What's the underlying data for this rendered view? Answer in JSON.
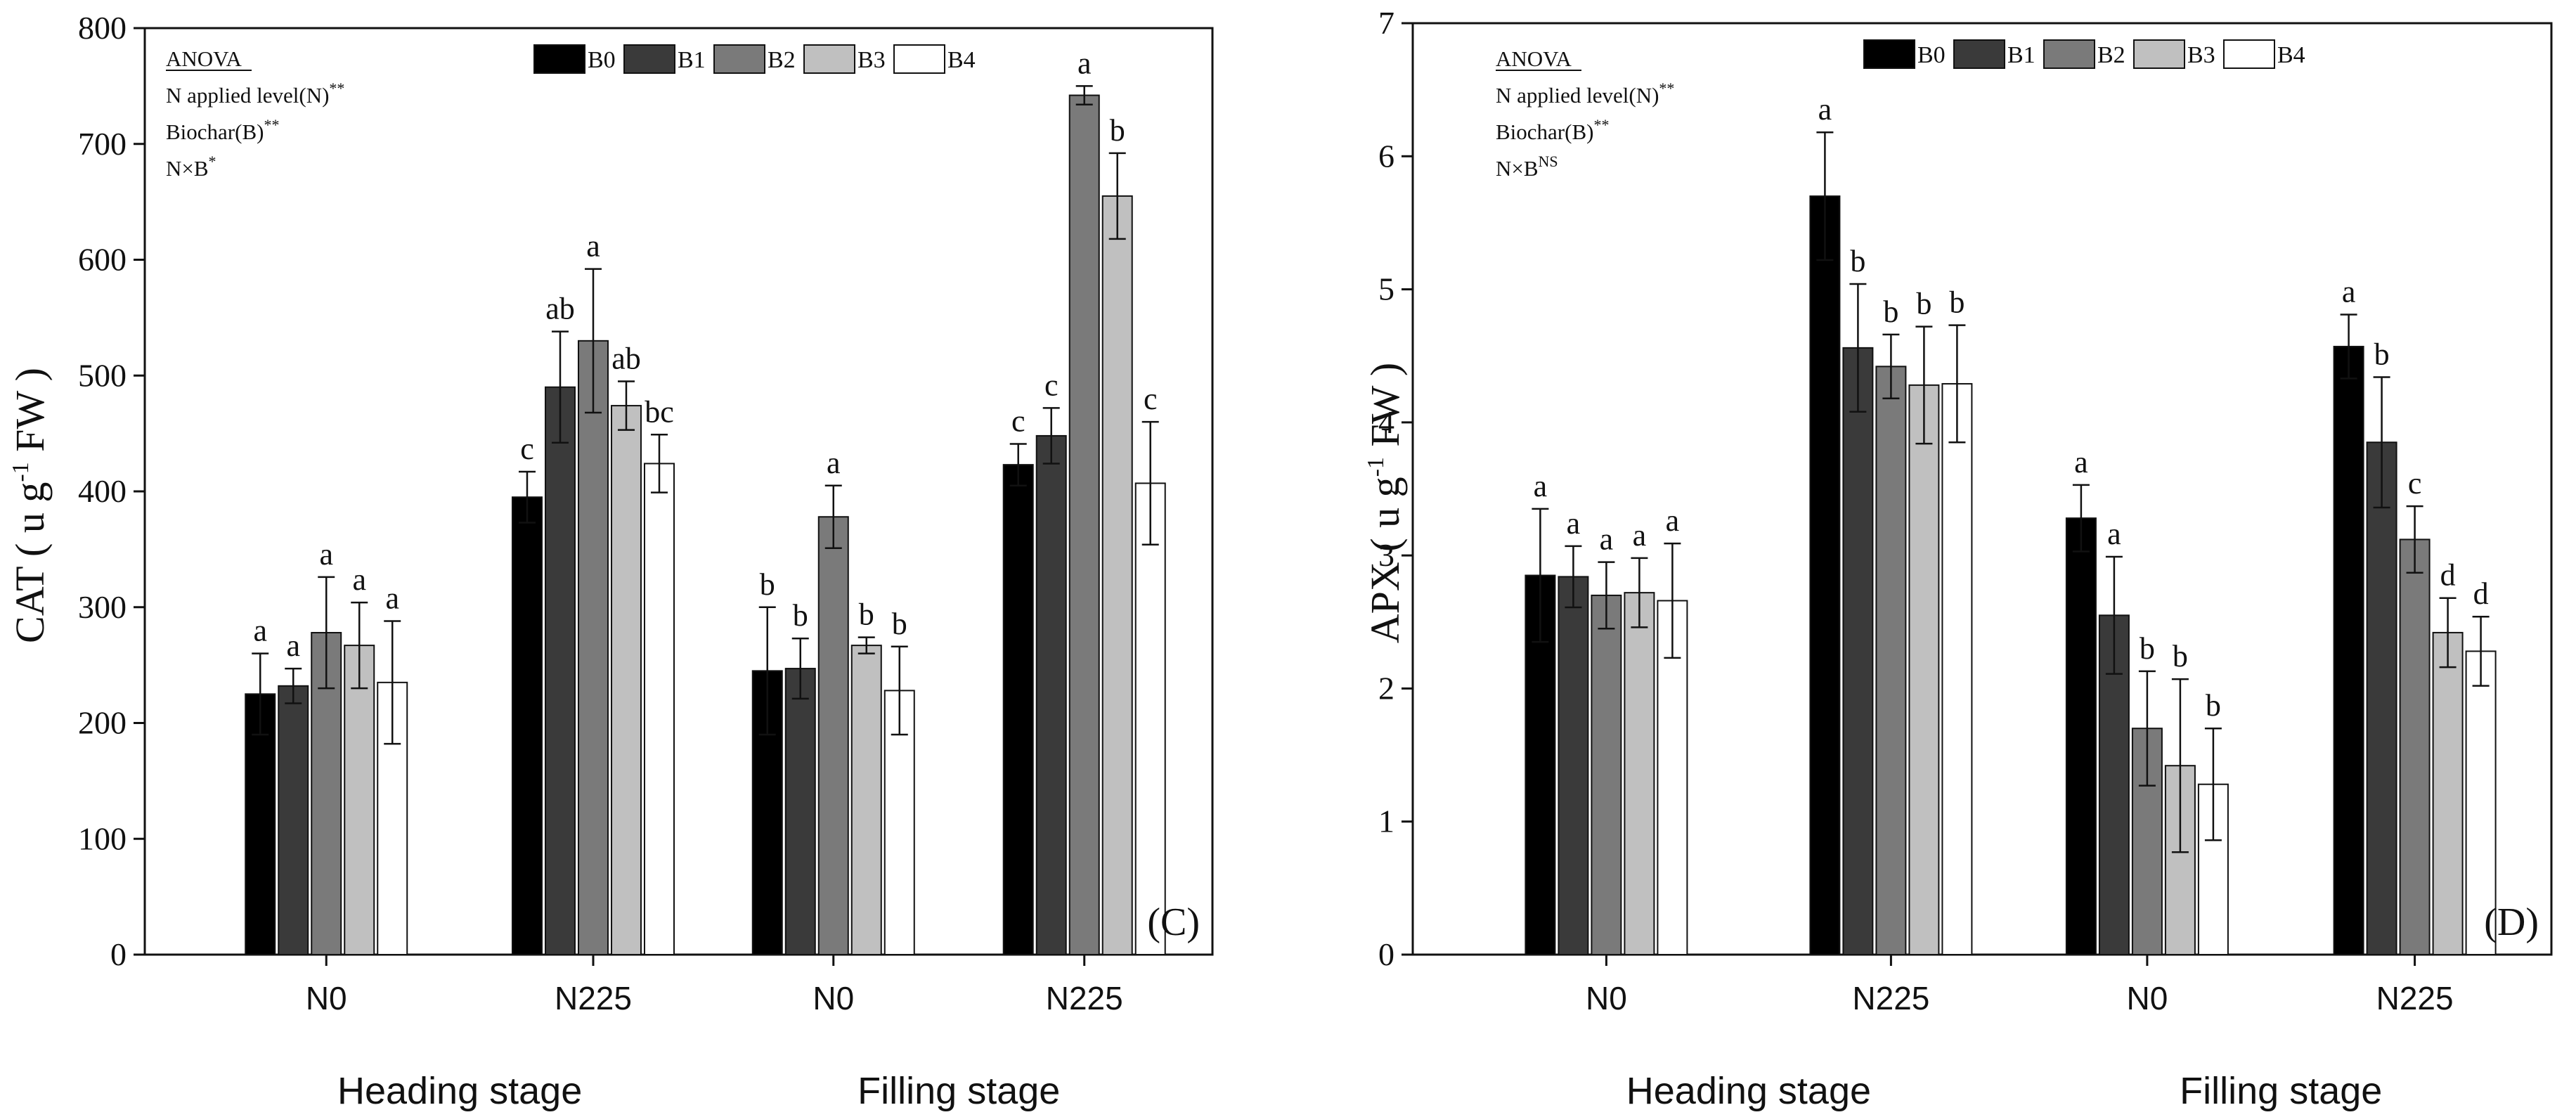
{
  "colors": {
    "B0": "#000000",
    "B1": "#3a3a3a",
    "B2": "#7a7a7a",
    "B3": "#c0c0c0",
    "B4": "#ffffff"
  },
  "chart_data": [
    {
      "type": "bar",
      "panel_label": "(C)",
      "ylabel_main": "CAT ( u g",
      "ylabel_sup": "-1",
      "ylabel_tail": " FW )",
      "ylim": [
        0,
        800
      ],
      "yticks": [
        "0",
        "100",
        "200",
        "300",
        "400",
        "500",
        "600",
        "700",
        "800"
      ],
      "categories": [
        "N0",
        "N225",
        "N0",
        "N225"
      ],
      "groups": [
        "Heading stage",
        "Filling stage"
      ],
      "anova": {
        "title": "ANOVA",
        "lines": [
          {
            "text": "N applied level(N)",
            "sup": "**"
          },
          {
            "text": "Biochar(B)",
            "sup": "**"
          },
          {
            "text": "N×B",
            "sup": "*"
          }
        ]
      },
      "series": [
        {
          "name": "B0",
          "values": [
            225,
            395,
            245,
            423
          ],
          "errors": [
            35,
            22,
            55,
            18
          ],
          "letters": [
            "a",
            "c",
            "b",
            "c"
          ]
        },
        {
          "name": "B1",
          "values": [
            232,
            490,
            247,
            448
          ],
          "errors": [
            15,
            48,
            26,
            24
          ],
          "letters": [
            "a",
            "ab",
            "b",
            "c"
          ]
        },
        {
          "name": "B2",
          "values": [
            278,
            530,
            378,
            742
          ],
          "errors": [
            48,
            62,
            27,
            8
          ],
          "letters": [
            "a",
            "a",
            "a",
            "a"
          ]
        },
        {
          "name": "B3",
          "values": [
            267,
            474,
            267,
            655
          ],
          "errors": [
            37,
            21,
            7,
            37
          ],
          "letters": [
            "a",
            "ab",
            "b",
            "b"
          ]
        },
        {
          "name": "B4",
          "values": [
            235,
            424,
            228,
            407
          ],
          "errors": [
            53,
            25,
            38,
            53
          ],
          "letters": [
            "a",
            "bc",
            "b",
            "c"
          ]
        }
      ]
    },
    {
      "type": "bar",
      "panel_label": "(D)",
      "ylabel_main": "APX ( u g",
      "ylabel_sup": "-1",
      "ylabel_tail": " FW )",
      "ylim": [
        0,
        7
      ],
      "yticks": [
        "0",
        "1",
        "2",
        "3",
        "4",
        "5",
        "6",
        "7"
      ],
      "categories": [
        "N0",
        "N225",
        "N0",
        "N225"
      ],
      "groups": [
        "Heading stage",
        "Filling stage"
      ],
      "anova": {
        "title": "ANOVA",
        "lines": [
          {
            "text": "N applied level(N)",
            "sup": "**"
          },
          {
            "text": "Biochar(B)",
            "sup": "**"
          },
          {
            "text": "N×B",
            "sup": "NS"
          }
        ]
      },
      "series": [
        {
          "name": "B0",
          "values": [
            2.85,
            5.7,
            3.28,
            4.57
          ],
          "errors": [
            0.5,
            0.48,
            0.25,
            0.24
          ],
          "letters": [
            "a",
            "a",
            "a",
            "a"
          ]
        },
        {
          "name": "B1",
          "values": [
            2.84,
            4.56,
            2.55,
            3.85
          ],
          "errors": [
            0.23,
            0.48,
            0.44,
            0.49
          ],
          "letters": [
            "a",
            "b",
            "a",
            "b"
          ]
        },
        {
          "name": "B2",
          "values": [
            2.7,
            4.42,
            1.7,
            3.12
          ],
          "errors": [
            0.25,
            0.24,
            0.43,
            0.25
          ],
          "letters": [
            "a",
            "b",
            "b",
            "c"
          ]
        },
        {
          "name": "B3",
          "values": [
            2.72,
            4.28,
            1.42,
            2.42
          ],
          "errors": [
            0.26,
            0.44,
            0.65,
            0.26
          ],
          "letters": [
            "a",
            "b",
            "b",
            "d"
          ]
        },
        {
          "name": "B4",
          "values": [
            2.66,
            4.29,
            1.28,
            2.28
          ],
          "errors": [
            0.43,
            0.44,
            0.42,
            0.26
          ],
          "letters": [
            "a",
            "b",
            "b",
            "d"
          ]
        }
      ]
    }
  ]
}
